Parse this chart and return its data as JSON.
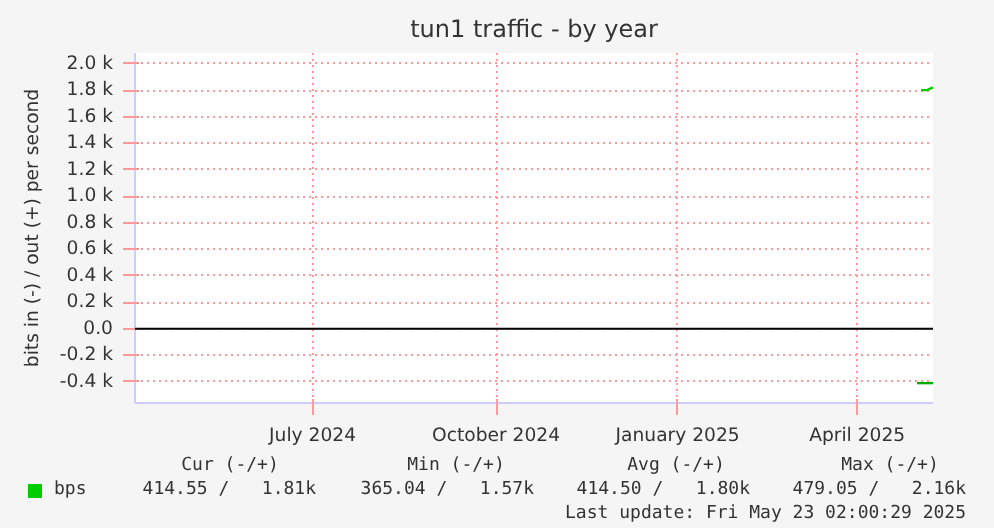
{
  "chart_data": {
    "type": "line",
    "title": "tun1 traffic - by year",
    "ylabel": "bits in (-) / out (+) per second",
    "xlim": [
      "2024-04-18",
      "2025-05-23"
    ],
    "xticks": [
      {
        "value": "2024-07-16",
        "label": "July 2024"
      },
      {
        "value": "2024-10-16",
        "label": "October 2024"
      },
      {
        "value": "2025-01-15",
        "label": "January 2025"
      },
      {
        "value": "2025-04-15",
        "label": "April 2025"
      }
    ],
    "ylim": [
      -560,
      2080
    ],
    "yticks": [
      {
        "value": -400,
        "label": "-0.4 k"
      },
      {
        "value": -200,
        "label": "-0.2 k"
      },
      {
        "value": 0,
        "label": "0.0"
      },
      {
        "value": 200,
        "label": "0.2 k"
      },
      {
        "value": 400,
        "label": "0.4 k"
      },
      {
        "value": 600,
        "label": "0.6 k"
      },
      {
        "value": 800,
        "label": "0.8 k"
      },
      {
        "value": 1000,
        "label": "1.0 k"
      },
      {
        "value": 1200,
        "label": "1.2 k"
      },
      {
        "value": 1400,
        "label": "1.4 k"
      },
      {
        "value": 1600,
        "label": "1.6 k"
      },
      {
        "value": 1800,
        "label": "1.8 k"
      },
      {
        "value": 2000,
        "label": "2.0 k"
      }
    ],
    "series": [
      {
        "name": "bps",
        "color": "#00cc00",
        "x": [
          "2025-05-17",
          "2025-05-20",
          "2025-05-23"
        ],
        "values": [
          1800,
          1800,
          1820
        ]
      },
      {
        "color": "#00aa00",
        "x": [
          "2025-05-15",
          "2025-05-19",
          "2025-05-23"
        ],
        "values": [
          -410,
          -410,
          -410
        ]
      }
    ],
    "ref_lines": [
      {
        "axis": "y",
        "value": 0,
        "color": "#000000"
      }
    ],
    "grid": true,
    "legend": "bottom left",
    "annotations": [
      "Cur (-/+)",
      "Min (-/+)",
      "Avg (-/+)",
      "Max (-/+)",
      "414.55 /   1.81k",
      "365.04 /   1.57k",
      "414.50 /   1.80k",
      "479.05 /   2.16k",
      "Last update: Fri May 23 02:00:29 2025"
    ]
  }
}
